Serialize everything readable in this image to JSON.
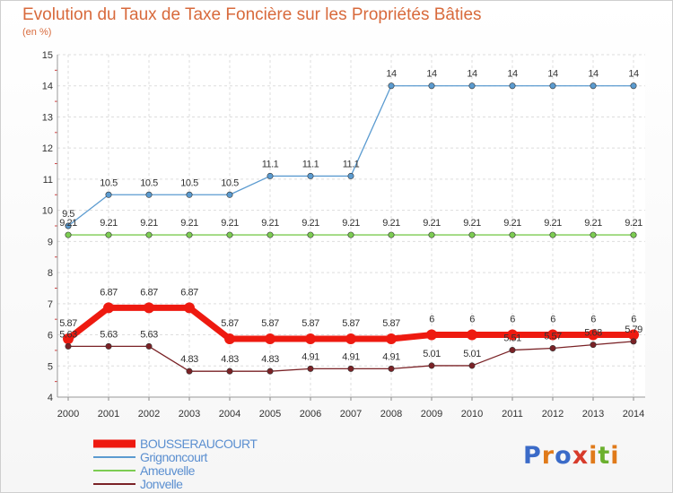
{
  "header": {
    "title": "Evolution du Taux de Taxe Foncière sur les Propriétés Bâties",
    "subtitle": "(en %)"
  },
  "logo": {
    "text": "Proxiti",
    "letters": [
      "P",
      "r",
      "o",
      "x",
      "i",
      "t",
      "i"
    ],
    "colors": [
      "#3b6bc8",
      "#e07a1a",
      "#3b6bc8",
      "#d73b2b",
      "#e07a1a",
      "#6bb02e",
      "#e07a1a"
    ]
  },
  "chart_data": {
    "type": "line",
    "title": "Evolution du Taux de Taxe Foncière sur les Propriétés Bâties",
    "ylabel": "(en %)",
    "xlabel": "",
    "ylim": [
      4,
      15
    ],
    "yticks": [
      4,
      5,
      6,
      7,
      8,
      9,
      10,
      11,
      12,
      13,
      14,
      15
    ],
    "x": [
      "2000",
      "2001",
      "2002",
      "2003",
      "2004",
      "2005",
      "2006",
      "2007",
      "2008",
      "2009",
      "2010",
      "2011",
      "2012",
      "2013",
      "2014"
    ],
    "series": [
      {
        "name": "Grignoncourt",
        "color": "#5b9bd0",
        "values": [
          9.5,
          10.5,
          10.5,
          10.5,
          10.5,
          11.1,
          11.1,
          11.1,
          14,
          14,
          14,
          14,
          14,
          14,
          14
        ],
        "labels": [
          "9.5",
          "10.5",
          "10.5",
          "10.5",
          "10.5",
          "11.1",
          "11.1",
          "11.1",
          "14",
          "14",
          "14",
          "14",
          "14",
          "14",
          "14"
        ]
      },
      {
        "name": "Ameuvelle",
        "color": "#7ccc52",
        "values": [
          9.21,
          9.21,
          9.21,
          9.21,
          9.21,
          9.21,
          9.21,
          9.21,
          9.21,
          9.21,
          9.21,
          9.21,
          9.21,
          9.21,
          9.21
        ],
        "labels": [
          "9.21",
          "9.21",
          "9.21",
          "9.21",
          "9.21",
          "9.21",
          "9.21",
          "9.21",
          "9.21",
          "9.21",
          "9.21",
          "9.21",
          "9.21",
          "9.21",
          "9.21"
        ]
      },
      {
        "name": "BOUSSERAUCOURT",
        "color": "#ee1a10",
        "values": [
          5.87,
          6.87,
          6.87,
          6.87,
          5.87,
          5.87,
          5.87,
          5.87,
          5.87,
          6,
          6,
          6,
          6,
          6,
          6
        ],
        "labels": [
          "5.87",
          "6.87",
          "6.87",
          "6.87",
          "5.87",
          "5.87",
          "5.87",
          "5.87",
          "5.87",
          "6",
          "6",
          "6",
          "6",
          "6",
          "6"
        ]
      },
      {
        "name": "Jonvelle",
        "color": "#7a2226",
        "values": [
          5.63,
          5.63,
          5.63,
          4.83,
          4.83,
          4.83,
          4.91,
          4.91,
          4.91,
          5.01,
          5.01,
          5.51,
          5.57,
          5.68,
          5.79
        ],
        "labels": [
          "5.63",
          "5.63",
          "5.63",
          "4.83",
          "4.83",
          "4.83",
          "4.91",
          "4.91",
          "4.91",
          "5.01",
          "5.01",
          "5.51",
          "5.57",
          "5.68",
          "5.79"
        ]
      }
    ],
    "legend": [
      "BOUSSERAUCOURT",
      "Grignoncourt",
      "Ameuvelle",
      "Jonvelle"
    ]
  }
}
